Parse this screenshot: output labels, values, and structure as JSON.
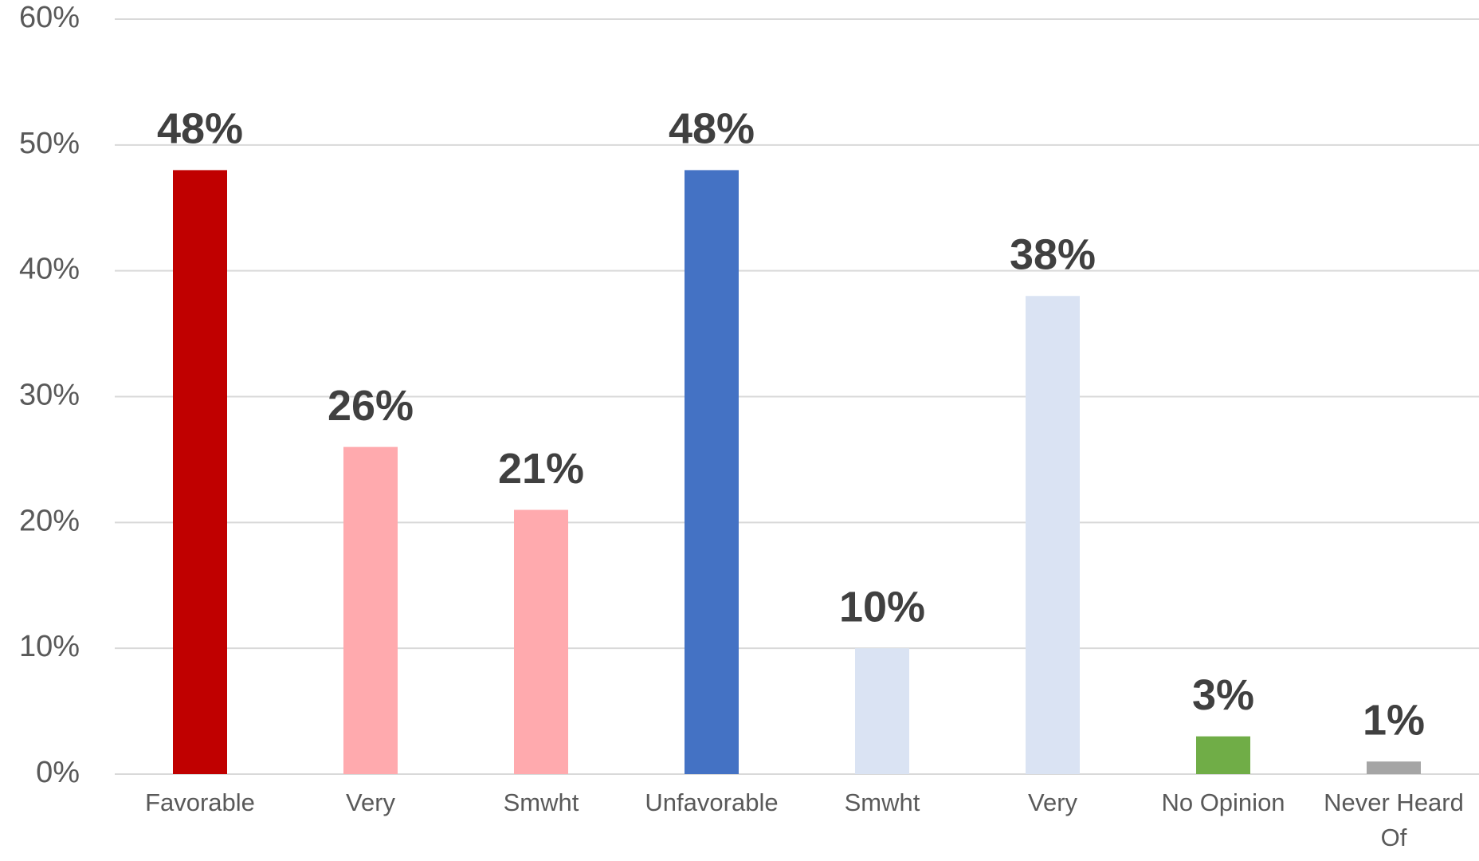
{
  "chart_data": {
    "type": "bar",
    "categories": [
      "Favorable",
      "Very",
      "Smwht",
      "Unfavorable",
      "Smwht",
      "Very",
      "No Opinion",
      "Never Heard Of"
    ],
    "values": [
      48,
      26,
      21,
      48,
      10,
      38,
      3,
      1
    ],
    "value_labels": [
      "48%",
      "26%",
      "21%",
      "48%",
      "10%",
      "38%",
      "3%",
      "1%"
    ],
    "colors": [
      "#c00000",
      "#ffaaae",
      "#ffaaae",
      "#4472c4",
      "#dae3f3",
      "#dae3f3",
      "#70ad47",
      "#a5a5a5"
    ],
    "ylim": [
      0,
      60
    ],
    "yticks": [
      {
        "value": 0,
        "label": "0%"
      },
      {
        "value": 10,
        "label": "10%"
      },
      {
        "value": 20,
        "label": "20%"
      },
      {
        "value": 30,
        "label": "30%"
      },
      {
        "value": 40,
        "label": "40%"
      },
      {
        "value": 50,
        "label": "50%"
      },
      {
        "value": 60,
        "label": "60%"
      }
    ],
    "grid": true
  }
}
